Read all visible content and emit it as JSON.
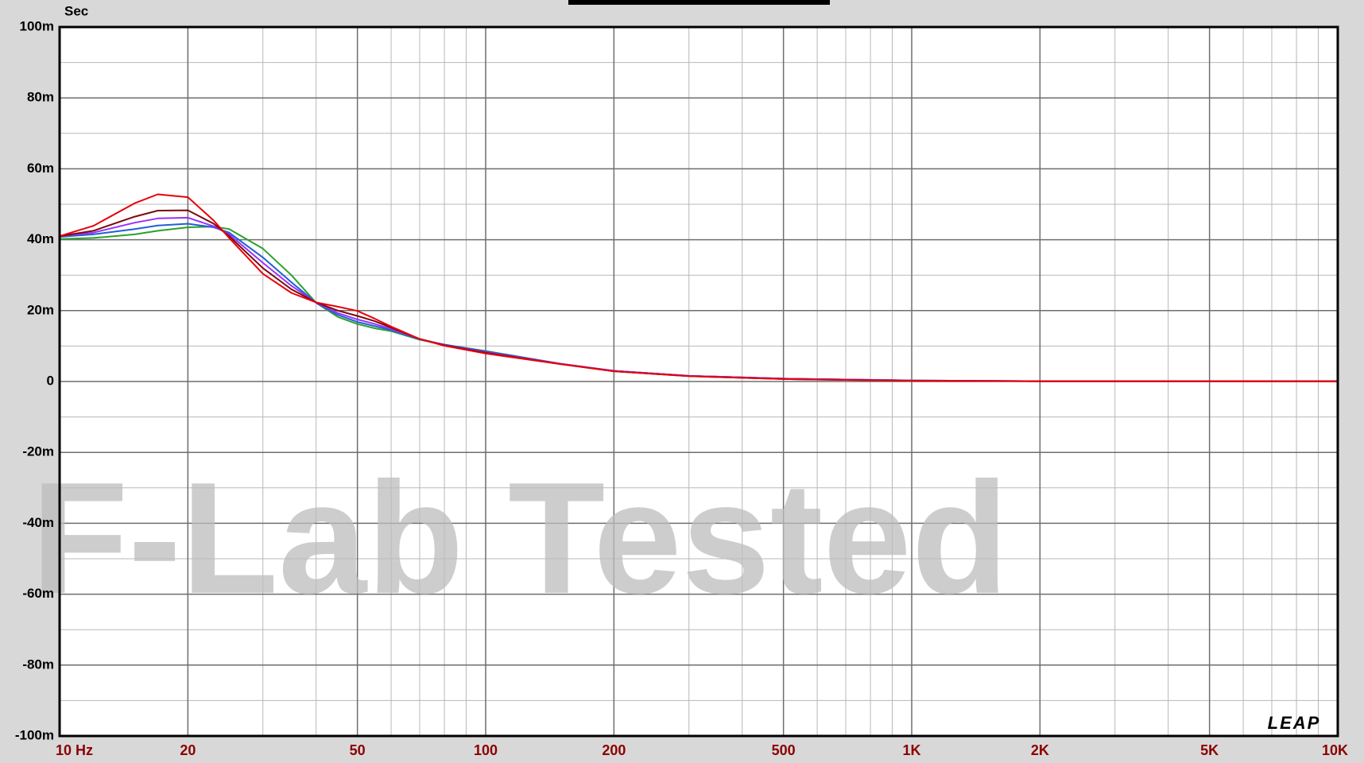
{
  "chart_data": {
    "type": "line",
    "y_label": "Sec",
    "watermark": "F-Lab Tested",
    "logo": "LEAP",
    "x_scale": "log",
    "grid": true,
    "xlim": [
      10,
      10000
    ],
    "xticks": [
      {
        "value": 10,
        "label": "10  Hz"
      },
      20,
      50,
      100,
      200,
      500,
      {
        "value": 1000,
        "label": "1K"
      },
      {
        "value": 2000,
        "label": "2K"
      },
      {
        "value": 5000,
        "label": "5K"
      },
      {
        "value": 10000,
        "label": "10K"
      }
    ],
    "xminor": [
      30,
      40,
      60,
      70,
      80,
      90,
      300,
      400,
      600,
      700,
      800,
      900,
      3000,
      4000,
      6000,
      7000,
      8000,
      9000
    ],
    "ylim": [
      -0.1,
      0.1
    ],
    "yticks": [
      {
        "value": -0.1,
        "label": "-100m"
      },
      {
        "value": -0.08,
        "label": "-80m"
      },
      {
        "value": -0.06,
        "label": "-60m"
      },
      {
        "value": -0.04,
        "label": "-40m"
      },
      {
        "value": -0.02,
        "label": "-20m"
      },
      0,
      {
        "value": 0.02,
        "label": "20m"
      },
      {
        "value": 0.04,
        "label": "40m"
      },
      {
        "value": 0.06,
        "label": "60m"
      },
      {
        "value": 0.08,
        "label": "80m"
      },
      {
        "value": 0.1,
        "label": "100m"
      }
    ],
    "yminor": [
      -0.09,
      -0.07,
      -0.05,
      -0.03,
      -0.01,
      0.01,
      0.03,
      0.05,
      0.07,
      0.09
    ],
    "x": [
      10,
      12,
      15,
      17,
      20,
      23,
      25,
      30,
      35,
      40,
      45,
      50,
      55,
      60,
      70,
      80,
      100,
      150,
      200,
      300,
      500,
      1000,
      2000,
      5000,
      10000
    ],
    "series": [
      {
        "color": "#2ca02c",
        "values": [
          0.0402,
          0.0405,
          0.0415,
          0.0425,
          0.0435,
          0.0437,
          0.043,
          0.0375,
          0.03,
          0.0222,
          0.0182,
          0.0162,
          0.015,
          0.0142,
          0.0118,
          0.0104,
          0.0086,
          0.005,
          0.003,
          0.0016,
          0.0008,
          0.0003,
          0.0001,
          0.0001,
          0.0001
        ]
      },
      {
        "color": "#1f5fd6",
        "values": [
          0.0408,
          0.0415,
          0.043,
          0.044,
          0.0445,
          0.0435,
          0.042,
          0.035,
          0.028,
          0.0222,
          0.0188,
          0.0168,
          0.0156,
          0.0145,
          0.0119,
          0.0104,
          0.0085,
          0.005,
          0.003,
          0.0016,
          0.0008,
          0.0003,
          0.0001,
          0.0001,
          0.0001
        ]
      },
      {
        "color": "#9b30ff",
        "values": [
          0.041,
          0.042,
          0.0448,
          0.046,
          0.0462,
          0.0438,
          0.0415,
          0.0335,
          0.027,
          0.0223,
          0.0193,
          0.0175,
          0.0162,
          0.0148,
          0.012,
          0.0103,
          0.0083,
          0.005,
          0.003,
          0.0016,
          0.0008,
          0.0003,
          0.0001,
          0.0001,
          0.0001
        ]
      },
      {
        "color": "#7a0a0a",
        "values": [
          0.041,
          0.0425,
          0.0465,
          0.0482,
          0.0483,
          0.0445,
          0.041,
          0.032,
          0.026,
          0.0223,
          0.02,
          0.0185,
          0.017,
          0.0152,
          0.012,
          0.0102,
          0.0081,
          0.0049,
          0.0029,
          0.0015,
          0.0007,
          0.0002,
          0.0001,
          0.0001,
          0.0001
        ]
      },
      {
        "color": "#e8000b",
        "values": [
          0.041,
          0.0439,
          0.0503,
          0.0528,
          0.052,
          0.0454,
          0.0405,
          0.0304,
          0.025,
          0.0223,
          0.0211,
          0.0199,
          0.0177,
          0.0155,
          0.012,
          0.0101,
          0.0079,
          0.0049,
          0.0029,
          0.0015,
          0.0007,
          0.0002,
          0.0001,
          0.0001,
          0
        ]
      }
    ]
  }
}
